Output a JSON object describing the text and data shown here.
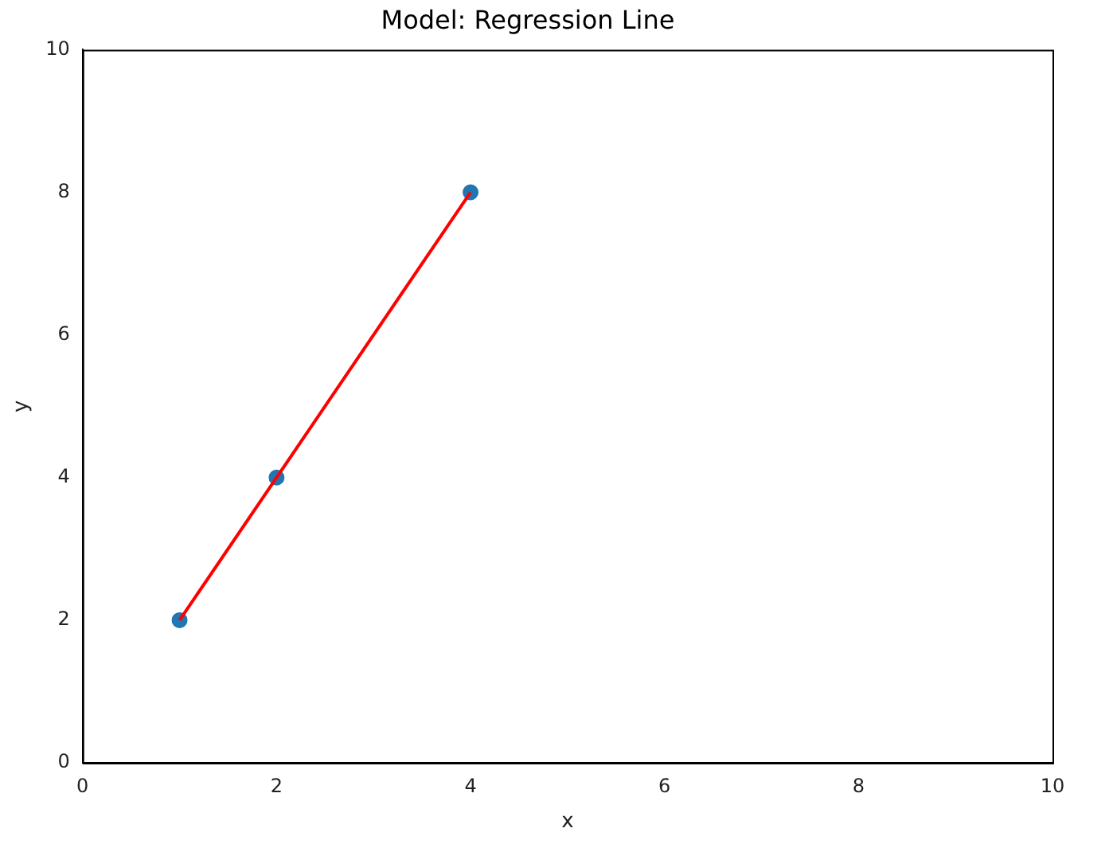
{
  "chart_data": {
    "type": "scatter",
    "title": "Model: Regression Line",
    "xlabel": "x",
    "ylabel": "y",
    "xlim": [
      0,
      10
    ],
    "ylim": [
      0,
      10
    ],
    "xticks": [
      0,
      2,
      4,
      6,
      8,
      10
    ],
    "yticks": [
      0,
      2,
      4,
      6,
      8,
      10
    ],
    "series": [
      {
        "type": "scatter",
        "color": "#1f77b4",
        "x": [
          1,
          2,
          4
        ],
        "values": [
          2,
          4,
          8
        ],
        "marker": "circle"
      },
      {
        "type": "line",
        "color": "#ff0000",
        "x": [
          1,
          4
        ],
        "values": [
          2,
          8
        ],
        "marker": "none",
        "line_style": "solid"
      }
    ]
  }
}
